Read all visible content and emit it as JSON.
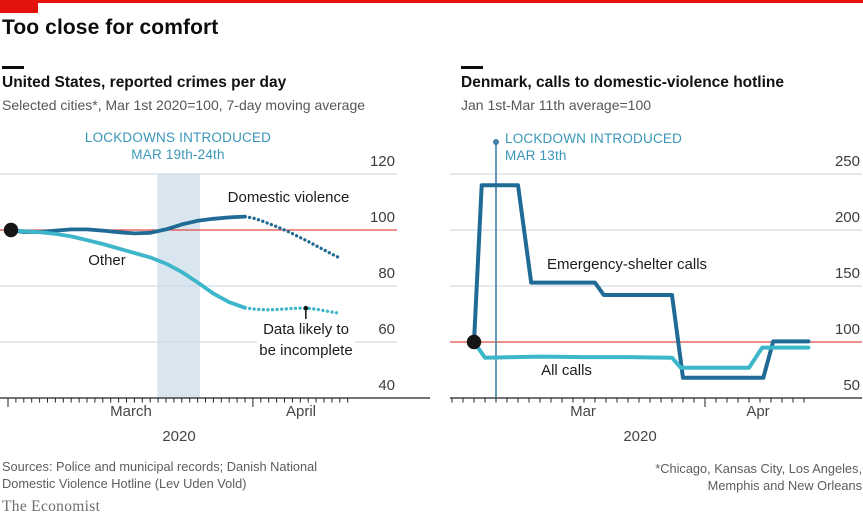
{
  "colors": {
    "brand_red": "#e3120b",
    "benchmark_red": "#e14b44",
    "dark_blue": "#1f6b96",
    "cyan": "#3eb6ca",
    "band_blue": "#d9e6ef",
    "grid_blue": "#c5d5e0",
    "lockdown_text": "#3996b8",
    "lockdown_line": "#3f7fa6",
    "axis_black": "#222222"
  },
  "header": {
    "title": "Too close for comfort"
  },
  "chart_data": [
    {
      "type": "line",
      "region": "left",
      "title": "United States, reported crimes per day",
      "subtitle": "Selected cities*, Mar 1st 2020=100, 7-day moving average",
      "x_axis": {
        "months": [
          "March",
          "April"
        ],
        "year": "2020",
        "start": "Mar 1st 2020",
        "tick_interval_days": 1
      },
      "ylim": [
        40,
        125
      ],
      "yticks": [
        120,
        100,
        80,
        60,
        40
      ],
      "benchmark": {
        "value": 100
      },
      "lockdown": {
        "label": "LOCKDOWNS INTRODUCED",
        "sublabel": "MAR 19th-24th",
        "band_days": [
          18.9,
          24.3
        ]
      },
      "start_marker": {
        "day": 0,
        "value": 100
      },
      "note": {
        "text": "Data likely to be incomplete",
        "day": 37.7,
        "value": 72.1
      },
      "series": [
        {
          "name": "Domestic violence",
          "color": "#1f6b96",
          "solid_until_day": 30,
          "points": [
            [
              0,
              100
            ],
            [
              2,
              99.3
            ],
            [
              4,
              99.3
            ],
            [
              6,
              99.8
            ],
            [
              8,
              100.2
            ],
            [
              10,
              100.2
            ],
            [
              12,
              99.8
            ],
            [
              14,
              99.2
            ],
            [
              16,
              98.8
            ],
            [
              18,
              99
            ],
            [
              20,
              100.2
            ],
            [
              22,
              102
            ],
            [
              24,
              103.3
            ],
            [
              26,
              104
            ],
            [
              28,
              104.5
            ],
            [
              30,
              104.8
            ],
            [
              31,
              104.3
            ],
            [
              32,
              103.4
            ],
            [
              33,
              102.3
            ],
            [
              34,
              101.2
            ],
            [
              35,
              100
            ],
            [
              36,
              98.7
            ],
            [
              37,
              97.3
            ],
            [
              38,
              95.9
            ],
            [
              39,
              94.4
            ],
            [
              40,
              92.9
            ],
            [
              41,
              91.4
            ],
            [
              42,
              90
            ]
          ]
        },
        {
          "name": "Other",
          "color": "#3eb6ca",
          "solid_until_day": 30,
          "points": [
            [
              0,
              100
            ],
            [
              2,
              99.6
            ],
            [
              4,
              99.2
            ],
            [
              6,
              98.6
            ],
            [
              8,
              97.7
            ],
            [
              10,
              96.4
            ],
            [
              12,
              95
            ],
            [
              14,
              93.4
            ],
            [
              16,
              91.8
            ],
            [
              18,
              90.2
            ],
            [
              20,
              88
            ],
            [
              22,
              85
            ],
            [
              24,
              81.3
            ],
            [
              26,
              77.3
            ],
            [
              28,
              74.2
            ],
            [
              30,
              72.2
            ],
            [
              31,
              71.8
            ],
            [
              32,
              71.6
            ],
            [
              33,
              71.5
            ],
            [
              34,
              71.6
            ],
            [
              35,
              71.8
            ],
            [
              36,
              72
            ],
            [
              37,
              72.1
            ],
            [
              38,
              72
            ],
            [
              39,
              71.7
            ],
            [
              40,
              71.2
            ],
            [
              41,
              70.7
            ],
            [
              42,
              70.2
            ]
          ]
        }
      ]
    },
    {
      "type": "line",
      "region": "right",
      "title": "Denmark, calls to domestic-violence hotline",
      "subtitle": "Jan 1st-Mar 11th average=100",
      "x_axis": {
        "months": [
          "Mar",
          "Apr"
        ],
        "year": "2020",
        "start": "Mar 11th 2020",
        "tick_interval_days": 1
      },
      "ylim": [
        45,
        260
      ],
      "yticks": [
        250,
        200,
        150,
        100,
        50
      ],
      "benchmark": {
        "value": 100
      },
      "lockdown": {
        "label": "LOCKDOWN INTRODUCED",
        "sublabel": "MAR 13th",
        "line_day": 2
      },
      "start_marker": {
        "day": 0,
        "value": 100
      },
      "series": [
        {
          "name": "Emergency-shelter calls",
          "color": "#1f6b96",
          "points": [
            [
              0,
              100
            ],
            [
              0.7,
              240
            ],
            [
              4,
              240
            ],
            [
              5.2,
              153
            ],
            [
              11,
              153
            ],
            [
              11.8,
              142
            ],
            [
              18,
              142
            ],
            [
              19,
              68
            ],
            [
              26.3,
              68
            ],
            [
              27.2,
              100.5
            ],
            [
              30.4,
              100.5
            ]
          ]
        },
        {
          "name": "All calls",
          "color": "#3eb6ca",
          "points": [
            [
              0,
              100
            ],
            [
              1,
              86
            ],
            [
              6,
              87
            ],
            [
              10,
              86.5
            ],
            [
              14,
              86.5
            ],
            [
              18,
              86
            ],
            [
              18.8,
              77
            ],
            [
              25,
              77
            ],
            [
              26.2,
              95
            ],
            [
              30.4,
              95
            ]
          ]
        }
      ]
    }
  ],
  "footer": {
    "sources": "Sources: Police and municipal records; Danish National Domestic Violence Hotline (Lev Uden Vold)",
    "footnote": "*Chicago, Kansas City, Los Angeles, Memphis and New Orleans",
    "brand": "The Economist"
  }
}
